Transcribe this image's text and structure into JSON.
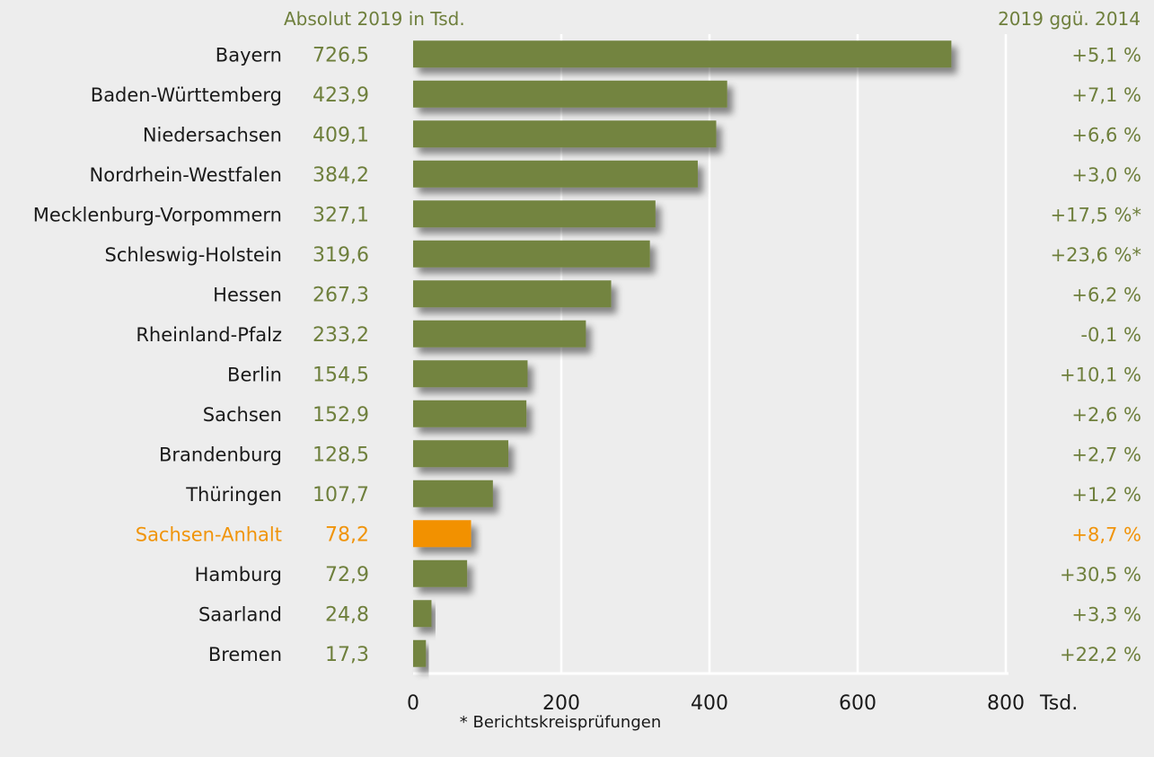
{
  "chart_data": {
    "type": "bar",
    "orientation": "horizontal",
    "value_header": "Absolut 2019 in Tsd.",
    "change_header": "2019 ggü. 2014",
    "categories": [
      "Bayern",
      "Baden-Württemberg",
      "Niedersachsen",
      "Nordrhein-Westfalen",
      "Mecklenburg-Vorpommern",
      "Schleswig-Holstein",
      "Hessen",
      "Rheinland-Pfalz",
      "Berlin",
      "Sachsen",
      "Brandenburg",
      "Thüringen",
      "Sachsen-Anhalt",
      "Hamburg",
      "Saarland",
      "Bremen"
    ],
    "values": [
      726.5,
      423.9,
      409.1,
      384.2,
      327.1,
      319.6,
      267.3,
      233.2,
      154.5,
      152.9,
      128.5,
      107.7,
      78.2,
      72.9,
      24.8,
      17.3
    ],
    "value_labels": [
      "726,5",
      "423,9",
      "409,1",
      "384,2",
      "327,1",
      "319,6",
      "267,3",
      "233,2",
      "154,5",
      "152,9",
      "128,5",
      "107,7",
      "78,2",
      "72,9",
      "24,8",
      "17,3"
    ],
    "changes": [
      "+5,1 %",
      "+7,1 %",
      "+6,6 %",
      "+3,0 %",
      "+17,5 %*",
      "+23,6 %*",
      "+6,2 %",
      "-0,1 %",
      "+10,1 %",
      "+2,6 %",
      "+2,7 %",
      "+1,2 %",
      "+8,7 %",
      "+30,5 %",
      "+3,3 %",
      "+22,2 %"
    ],
    "highlight": "Sachsen-Anhalt",
    "xlim": [
      0,
      800
    ],
    "xticks": [
      "0",
      "200",
      "400",
      "600",
      "800"
    ],
    "x_unit": "Tsd.",
    "footnote": "* Berichtskreisprüfungen",
    "grid": true,
    "colors": {
      "bar": "#738441",
      "highlight": "#f29100",
      "text_accent": "#6e7f3c",
      "background": "#ededed"
    }
  }
}
